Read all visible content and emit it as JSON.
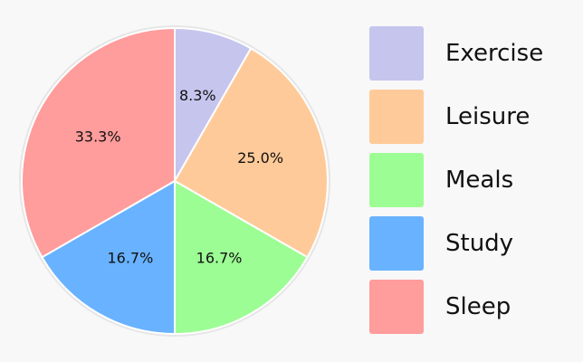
{
  "chart_data": {
    "type": "pie",
    "title": "",
    "slices": [
      {
        "label": "Exercise",
        "value": 8.3,
        "display": "8.3%",
        "color": "#c5c5ee"
      },
      {
        "label": "Leisure",
        "value": 25.0,
        "display": "25.0%",
        "color": "#ffca99"
      },
      {
        "label": "Meals",
        "value": 16.7,
        "display": "16.7%",
        "color": "#9dfd95"
      },
      {
        "label": "Study",
        "value": 16.7,
        "display": "16.7%",
        "color": "#69b2ff"
      },
      {
        "label": "Sleep",
        "value": 33.3,
        "display": "33.3%",
        "color": "#ff9c9c"
      }
    ],
    "start": "top",
    "direction": "clockwise",
    "legend_position": "right"
  }
}
